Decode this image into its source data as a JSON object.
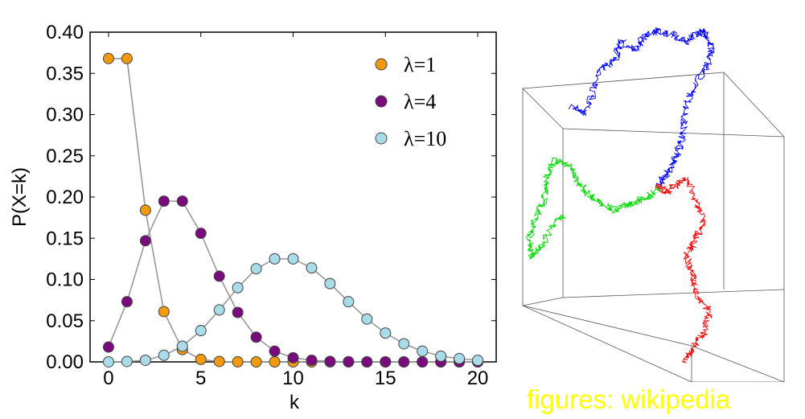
{
  "chart_data": [
    {
      "type": "line",
      "title": "",
      "xlabel": "k",
      "ylabel": "P(X=k)",
      "xlim": [
        -1,
        21
      ],
      "ylim": [
        0,
        0.4
      ],
      "xticks": [
        "0",
        "5",
        "10",
        "15",
        "20"
      ],
      "yticks": [
        "0.00",
        "0.05",
        "0.10",
        "0.15",
        "0.20",
        "0.25",
        "0.30",
        "0.35",
        "0.40"
      ],
      "legend_position": "top-right",
      "grid": false,
      "series": [
        {
          "name": "λ=1",
          "color": "#f29a0e",
          "line_color": "#999999",
          "marker": "circle",
          "x": [
            0,
            1,
            2,
            3,
            4,
            5,
            6,
            7,
            8,
            9,
            10,
            11,
            12,
            13,
            14,
            15,
            16,
            17,
            18,
            19,
            20
          ],
          "y": [
            0.368,
            0.368,
            0.184,
            0.061,
            0.015,
            0.003,
            0.0005,
            0.0001,
            0,
            0,
            0,
            0,
            0,
            0,
            0,
            0,
            0,
            0,
            0,
            0,
            0
          ]
        },
        {
          "name": "λ=4",
          "color": "#7a0b7c",
          "line_color": "#999999",
          "marker": "circle",
          "x": [
            0,
            1,
            2,
            3,
            4,
            5,
            6,
            7,
            8,
            9,
            10,
            11,
            12,
            13,
            14,
            15,
            16,
            17,
            18,
            19,
            20
          ],
          "y": [
            0.018,
            0.073,
            0.147,
            0.195,
            0.195,
            0.156,
            0.104,
            0.06,
            0.03,
            0.013,
            0.005,
            0.002,
            0.0006,
            0.0002,
            0,
            0,
            0,
            0,
            0,
            0,
            0
          ]
        },
        {
          "name": "λ=10",
          "color": "#a9dbe8",
          "line_color": "#999999",
          "marker": "circle",
          "x": [
            0,
            1,
            2,
            3,
            4,
            5,
            6,
            7,
            8,
            9,
            10,
            11,
            12,
            13,
            14,
            15,
            16,
            17,
            18,
            19,
            20
          ],
          "y": [
            5e-05,
            0.0005,
            0.002,
            0.008,
            0.019,
            0.038,
            0.063,
            0.09,
            0.113,
            0.125,
            0.125,
            0.114,
            0.095,
            0.073,
            0.052,
            0.035,
            0.022,
            0.013,
            0.007,
            0.004,
            0.002
          ]
        }
      ]
    },
    {
      "type": "scatter",
      "title": "",
      "description_visible": "3D random walk trajectories",
      "series": [
        {
          "color": "#0000ff",
          "path": [
            [
              0.23,
              0.23
            ],
            [
              0.27,
              0.25
            ],
            [
              0.3,
              0.2
            ],
            [
              0.33,
              0.12
            ],
            [
              0.38,
              0.1
            ],
            [
              0.4,
              0.05
            ],
            [
              0.45,
              0.07
            ],
            [
              0.49,
              0.03
            ],
            [
              0.53,
              0.02
            ],
            [
              0.58,
              0.03
            ],
            [
              0.63,
              0.05
            ],
            [
              0.66,
              0.03
            ],
            [
              0.69,
              0.02
            ],
            [
              0.72,
              0.06
            ],
            [
              0.7,
              0.12
            ],
            [
              0.66,
              0.17
            ],
            [
              0.63,
              0.22
            ],
            [
              0.62,
              0.29
            ],
            [
              0.61,
              0.34
            ],
            [
              0.59,
              0.38
            ],
            [
              0.56,
              0.42
            ],
            [
              0.53,
              0.45
            ]
          ]
        },
        {
          "color": "#ff0000",
          "path": [
            [
              0.53,
              0.45
            ],
            [
              0.56,
              0.47
            ],
            [
              0.59,
              0.45
            ],
            [
              0.63,
              0.43
            ],
            [
              0.66,
              0.49
            ],
            [
              0.69,
              0.55
            ],
            [
              0.66,
              0.6
            ],
            [
              0.63,
              0.65
            ],
            [
              0.65,
              0.7
            ],
            [
              0.67,
              0.76
            ],
            [
              0.71,
              0.8
            ],
            [
              0.69,
              0.86
            ],
            [
              0.65,
              0.91
            ],
            [
              0.62,
              0.94
            ]
          ]
        },
        {
          "color": "#00dd00",
          "path": [
            [
              0.53,
              0.46
            ],
            [
              0.48,
              0.49
            ],
            [
              0.43,
              0.5
            ],
            [
              0.38,
              0.52
            ],
            [
              0.33,
              0.5
            ],
            [
              0.29,
              0.48
            ],
            [
              0.25,
              0.44
            ],
            [
              0.22,
              0.4
            ],
            [
              0.17,
              0.38
            ],
            [
              0.14,
              0.43
            ],
            [
              0.13,
              0.49
            ],
            [
              0.1,
              0.55
            ],
            [
              0.08,
              0.6
            ],
            [
              0.09,
              0.65
            ],
            [
              0.12,
              0.62
            ],
            [
              0.16,
              0.56
            ],
            [
              0.2,
              0.53
            ]
          ]
        }
      ]
    }
  ],
  "caption": "figures: wikipedia"
}
